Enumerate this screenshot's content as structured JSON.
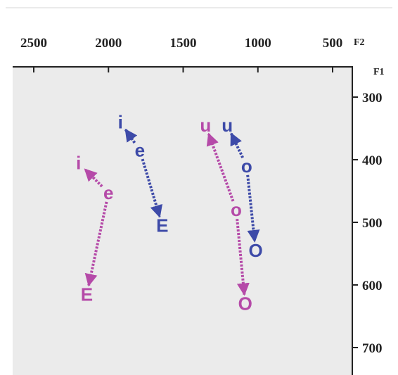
{
  "chart_data": {
    "type": "scatter",
    "title": "",
    "x_axis": {
      "label": "F2",
      "position": "top",
      "reversed": true,
      "lim": [
        2700,
        380
      ],
      "ticks": [
        "2500",
        "2000",
        "1500",
        "1000",
        "500"
      ]
    },
    "y_axis": {
      "label": "F1",
      "position": "right",
      "reversed": true,
      "lim": [
        235,
        725
      ],
      "ticks": [
        "300",
        "400",
        "500",
        "600",
        "700"
      ]
    },
    "background": "#ebebeb",
    "grid": false,
    "legend": "none",
    "series": [
      {
        "color": "#3d4aa8",
        "points": [
          {
            "label": "i",
            "f2": 1920,
            "f1": 340
          },
          {
            "label": "e",
            "f2": 1790,
            "f1": 385
          },
          {
            "label": "E",
            "f2": 1640,
            "f1": 505
          },
          {
            "label": "u",
            "f2": 1205,
            "f1": 345
          },
          {
            "label": "o",
            "f2": 1075,
            "f1": 410
          },
          {
            "label": "O",
            "f2": 1015,
            "f1": 545
          }
        ],
        "arrows": [
          {
            "from": "e",
            "to": "i"
          },
          {
            "from": "e",
            "to": "E"
          },
          {
            "from": "o",
            "to": "u"
          },
          {
            "from": "o",
            "to": "O"
          }
        ]
      },
      {
        "color": "#b54aa8",
        "points": [
          {
            "label": "i",
            "f2": 2200,
            "f1": 405
          },
          {
            "label": "e",
            "f2": 2000,
            "f1": 453
          },
          {
            "label": "E",
            "f2": 2145,
            "f1": 615
          },
          {
            "label": "u",
            "f2": 1350,
            "f1": 345
          },
          {
            "label": "o",
            "f2": 1145,
            "f1": 480
          },
          {
            "label": "O",
            "f2": 1085,
            "f1": 630
          }
        ],
        "arrows": [
          {
            "from": "e",
            "to": "i"
          },
          {
            "from": "e",
            "to": "E"
          },
          {
            "from": "o",
            "to": "u"
          },
          {
            "from": "o",
            "to": "O"
          }
        ]
      }
    ]
  }
}
